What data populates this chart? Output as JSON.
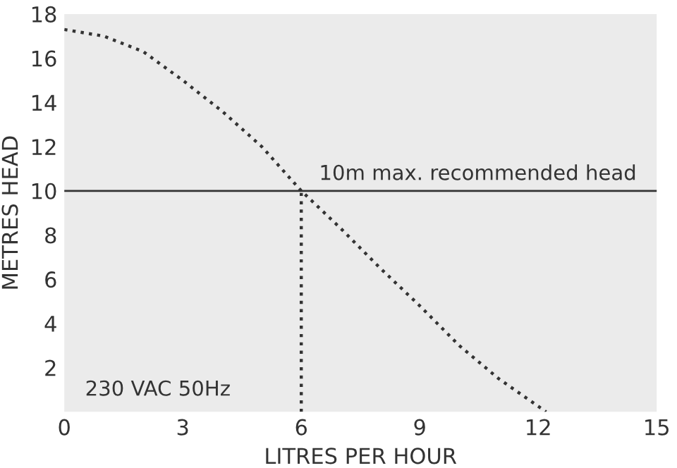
{
  "chart_data": {
    "type": "line",
    "xlabel": "LITRES PER HOUR",
    "ylabel": "METRES HEAD",
    "x": [
      0,
      1,
      2,
      3,
      4,
      5,
      6,
      7,
      8,
      9,
      10,
      11,
      12.2
    ],
    "series": [
      {
        "color": "#333333",
        "line_style": "dotted",
        "values": [
          17.3,
          17,
          16.3,
          15,
          13.6,
          12,
          10,
          8.3,
          6.5,
          4.8,
          3,
          1.5,
          0
        ]
      },
      {
        "color": "#333333",
        "line_style": "dotted",
        "x": [
          6,
          6
        ],
        "values": [
          0,
          10
        ]
      }
    ],
    "ref_lines": [
      {
        "axis": "y",
        "value": 10,
        "label": "10m max. recommended head",
        "color": "#333333",
        "line_style": "solid"
      }
    ],
    "annotations": [
      "230 VAC 50Hz"
    ],
    "xlim": [
      0,
      15
    ],
    "ylim": [
      0,
      18
    ],
    "xticks": [
      0,
      3,
      6,
      9,
      12,
      15
    ],
    "yticks": [
      2,
      4,
      6,
      8,
      10,
      12,
      14,
      16,
      18
    ],
    "grid": false,
    "legend": false,
    "marker": "none"
  }
}
